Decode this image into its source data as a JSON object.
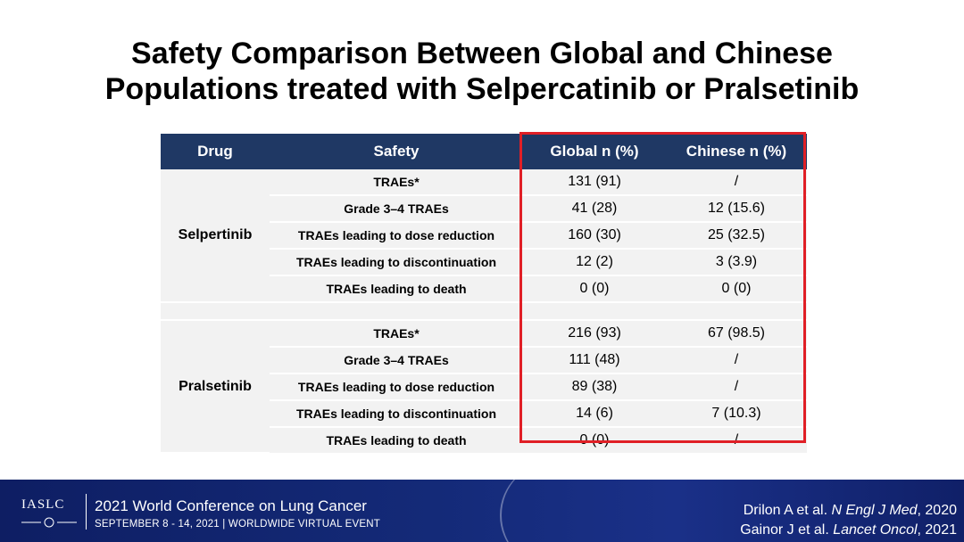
{
  "title": {
    "line1": "Safety Comparison Between Global and Chinese",
    "line2": "Populations treated with Selpercatinib or Pralsetinib"
  },
  "table": {
    "headers": {
      "drug": "Drug",
      "safety": "Safety",
      "global": "Global n (%)",
      "chinese": "Chinese n (%)"
    },
    "groups": [
      {
        "drug": "Selpertinib",
        "rows": [
          {
            "safety": "TRAEs*",
            "global": "131 (91)",
            "chinese": "/"
          },
          {
            "safety": "Grade 3–4 TRAEs",
            "global": "41 (28)",
            "chinese": "12 (15.6)"
          },
          {
            "safety": "TRAEs leading to dose reduction",
            "global": "160 (30)",
            "chinese": "25 (32.5)"
          },
          {
            "safety": "TRAEs leading to discontinuation",
            "global": "12 (2)",
            "chinese": "3 (3.9)"
          },
          {
            "safety": "TRAEs leading to death",
            "global": "0 (0)",
            "chinese": "0 (0)"
          }
        ]
      },
      {
        "drug": "Pralsetinib",
        "rows": [
          {
            "safety": "TRAEs*",
            "global": "216 (93)",
            "chinese": "67 (98.5)"
          },
          {
            "safety": "Grade 3–4 TRAEs",
            "global": "111 (48)",
            "chinese": "/"
          },
          {
            "safety": "TRAEs leading to dose reduction",
            "global": "89 (38)",
            "chinese": "/"
          },
          {
            "safety": "TRAEs leading to discontinuation",
            "global": "14 (6)",
            "chinese": "7 (10.3)"
          },
          {
            "safety": "TRAEs leading to death",
            "global": "0 (0)",
            "chinese": "/"
          }
        ]
      }
    ]
  },
  "footer": {
    "logo": "IASLC",
    "conference": "2021 World Conference on Lung Cancer",
    "subtitle": "SEPTEMBER 8 - 14, 2021 | WORLDWIDE VIRTUAL EVENT",
    "refs": [
      {
        "authors": "Drilon A et al. ",
        "journal": "N Engl J Med",
        "year": ", 2020"
      },
      {
        "authors": "Gainor J et al. ",
        "journal": "Lancet Oncol",
        "year": ", 2021"
      }
    ]
  },
  "colors": {
    "header_bg": "#1f3864",
    "highlight": "#e01f26",
    "cell_bg": "#f2f2f2",
    "footer_bg": "#142a78"
  }
}
